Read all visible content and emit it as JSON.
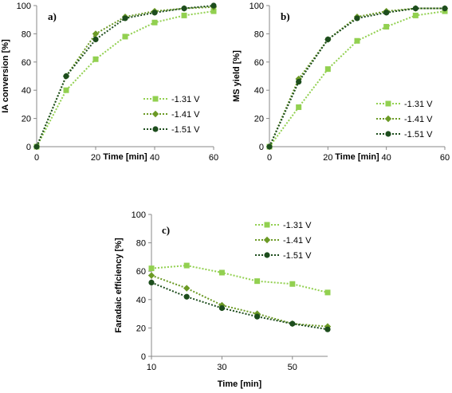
{
  "chart_data": [
    {
      "type": "line",
      "panel_label": "a)",
      "xlabel": "Time [min]",
      "ylabel": "IA conversion [%]",
      "xlim": [
        0,
        60
      ],
      "ylim": [
        0,
        100
      ],
      "xticks": [
        0,
        20,
        40,
        60
      ],
      "yticks": [
        0,
        20,
        40,
        60,
        80,
        100
      ],
      "grid": false,
      "legend": "bottom-right",
      "x": [
        0,
        10,
        20,
        30,
        40,
        50,
        60
      ],
      "series": [
        {
          "name": "-1.31 V",
          "values": [
            0,
            40,
            62,
            78,
            88,
            93,
            96
          ],
          "color": "#92d050",
          "marker": "square"
        },
        {
          "name": "-1.41 V",
          "values": [
            0,
            50,
            80,
            92,
            96,
            98,
            99
          ],
          "color": "#6b9a25",
          "marker": "diamond"
        },
        {
          "name": "-1.51 V",
          "values": [
            0,
            50,
            76,
            91,
            95,
            98,
            100
          ],
          "color": "#1d4d1d",
          "marker": "circle"
        }
      ]
    },
    {
      "type": "line",
      "panel_label": "b)",
      "xlabel": "Time [min]",
      "ylabel": "MS yield [%]",
      "xlim": [
        0,
        60
      ],
      "ylim": [
        0,
        100
      ],
      "xticks": [
        0,
        20,
        40,
        60
      ],
      "yticks": [
        0,
        20,
        40,
        60,
        80,
        100
      ],
      "grid": false,
      "legend": "bottom-right",
      "x": [
        0,
        10,
        20,
        30,
        40,
        50,
        60
      ],
      "series": [
        {
          "name": "-1.31 V",
          "values": [
            0,
            28,
            55,
            75,
            85,
            93,
            96
          ],
          "color": "#92d050",
          "marker": "square"
        },
        {
          "name": "-1.41 V",
          "values": [
            0,
            48,
            76,
            92,
            96,
            98,
            98
          ],
          "color": "#6b9a25",
          "marker": "diamond"
        },
        {
          "name": "-1.51 V",
          "values": [
            0,
            46,
            76,
            91,
            95,
            98,
            98
          ],
          "color": "#1d4d1d",
          "marker": "circle"
        }
      ]
    },
    {
      "type": "line",
      "panel_label": "c)",
      "xlabel": "Time [min]",
      "ylabel": "Faradaic efficiency [%]",
      "xlim": [
        10,
        60
      ],
      "ylim": [
        0,
        100
      ],
      "xticks": [
        10,
        30,
        50
      ],
      "yticks": [
        0,
        20,
        40,
        60,
        80,
        100
      ],
      "grid": false,
      "legend": "top-right",
      "x": [
        10,
        20,
        30,
        40,
        50,
        60
      ],
      "series": [
        {
          "name": "-1.31 V",
          "values": [
            62,
            64,
            59,
            53,
            51,
            45
          ],
          "color": "#92d050",
          "marker": "square"
        },
        {
          "name": "-1.41 V",
          "values": [
            57,
            48,
            36,
            30,
            23,
            21
          ],
          "color": "#6b9a25",
          "marker": "diamond"
        },
        {
          "name": "-1.51 V",
          "values": [
            52,
            42,
            34,
            28,
            23,
            19
          ],
          "color": "#1d4d1d",
          "marker": "circle"
        }
      ]
    }
  ]
}
